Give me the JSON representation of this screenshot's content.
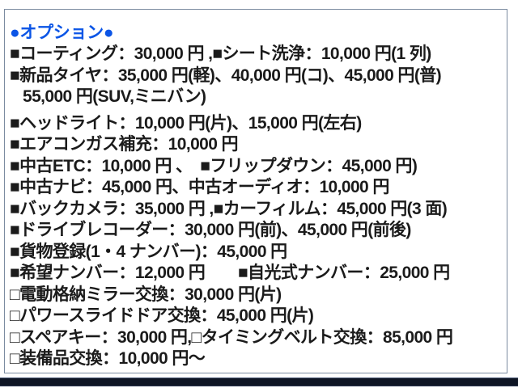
{
  "colors": {
    "title_blue": "#0b55e6",
    "body_text": "#1b1b1b",
    "panel_border": "#7b8ba0",
    "bottom_bar": "#0e1524"
  },
  "panel": {
    "title": "●オプション●",
    "lines": [
      {
        "text": "■コーティング：30,000 円 ,■シート洗浄：10,000 円(1 列)"
      },
      {
        "text": "■新品タイヤ：35,000 円(軽)、40,000 円(コ)、45,000 円(普)"
      },
      {
        "text": "55,000 円(SUV,ミニバン)",
        "indent": true
      },
      {
        "text": "■ヘッドライト：10,000 円(片)、15,000 円(左右)",
        "gap_before": true
      },
      {
        "text": "■エアコンガス補充：10,000 円"
      },
      {
        "text": "■中古ETC：10,000 円 、　■フリップダウン：45,000 円)"
      },
      {
        "text": "■中古ナビ：45,000 円、中古オーディオ：10,000 円"
      },
      {
        "text": "■バックカメラ：35,000 円 ,■カーフィルム：45,000 円(3 面)"
      },
      {
        "text": "■ドライブレコーダー：30,000 円(前)、45,000 円(前後)"
      },
      {
        "text": "■貨物登録(1・4 ナンバー)：45,000 円"
      },
      {
        "text": "■希望ナンバー：12,000 円　　■自光式ナンバー：25,000 円"
      },
      {
        "text": "□電動格納ミラー交換：30,000 円(片)"
      },
      {
        "text": "□パワースライドドア交換：45,000 円(片)"
      },
      {
        "text": "□スペアキー：30,000 円,□タイミングベルト交換：85,000 円"
      },
      {
        "text": "□装備品交換：10,000 円～"
      }
    ]
  }
}
